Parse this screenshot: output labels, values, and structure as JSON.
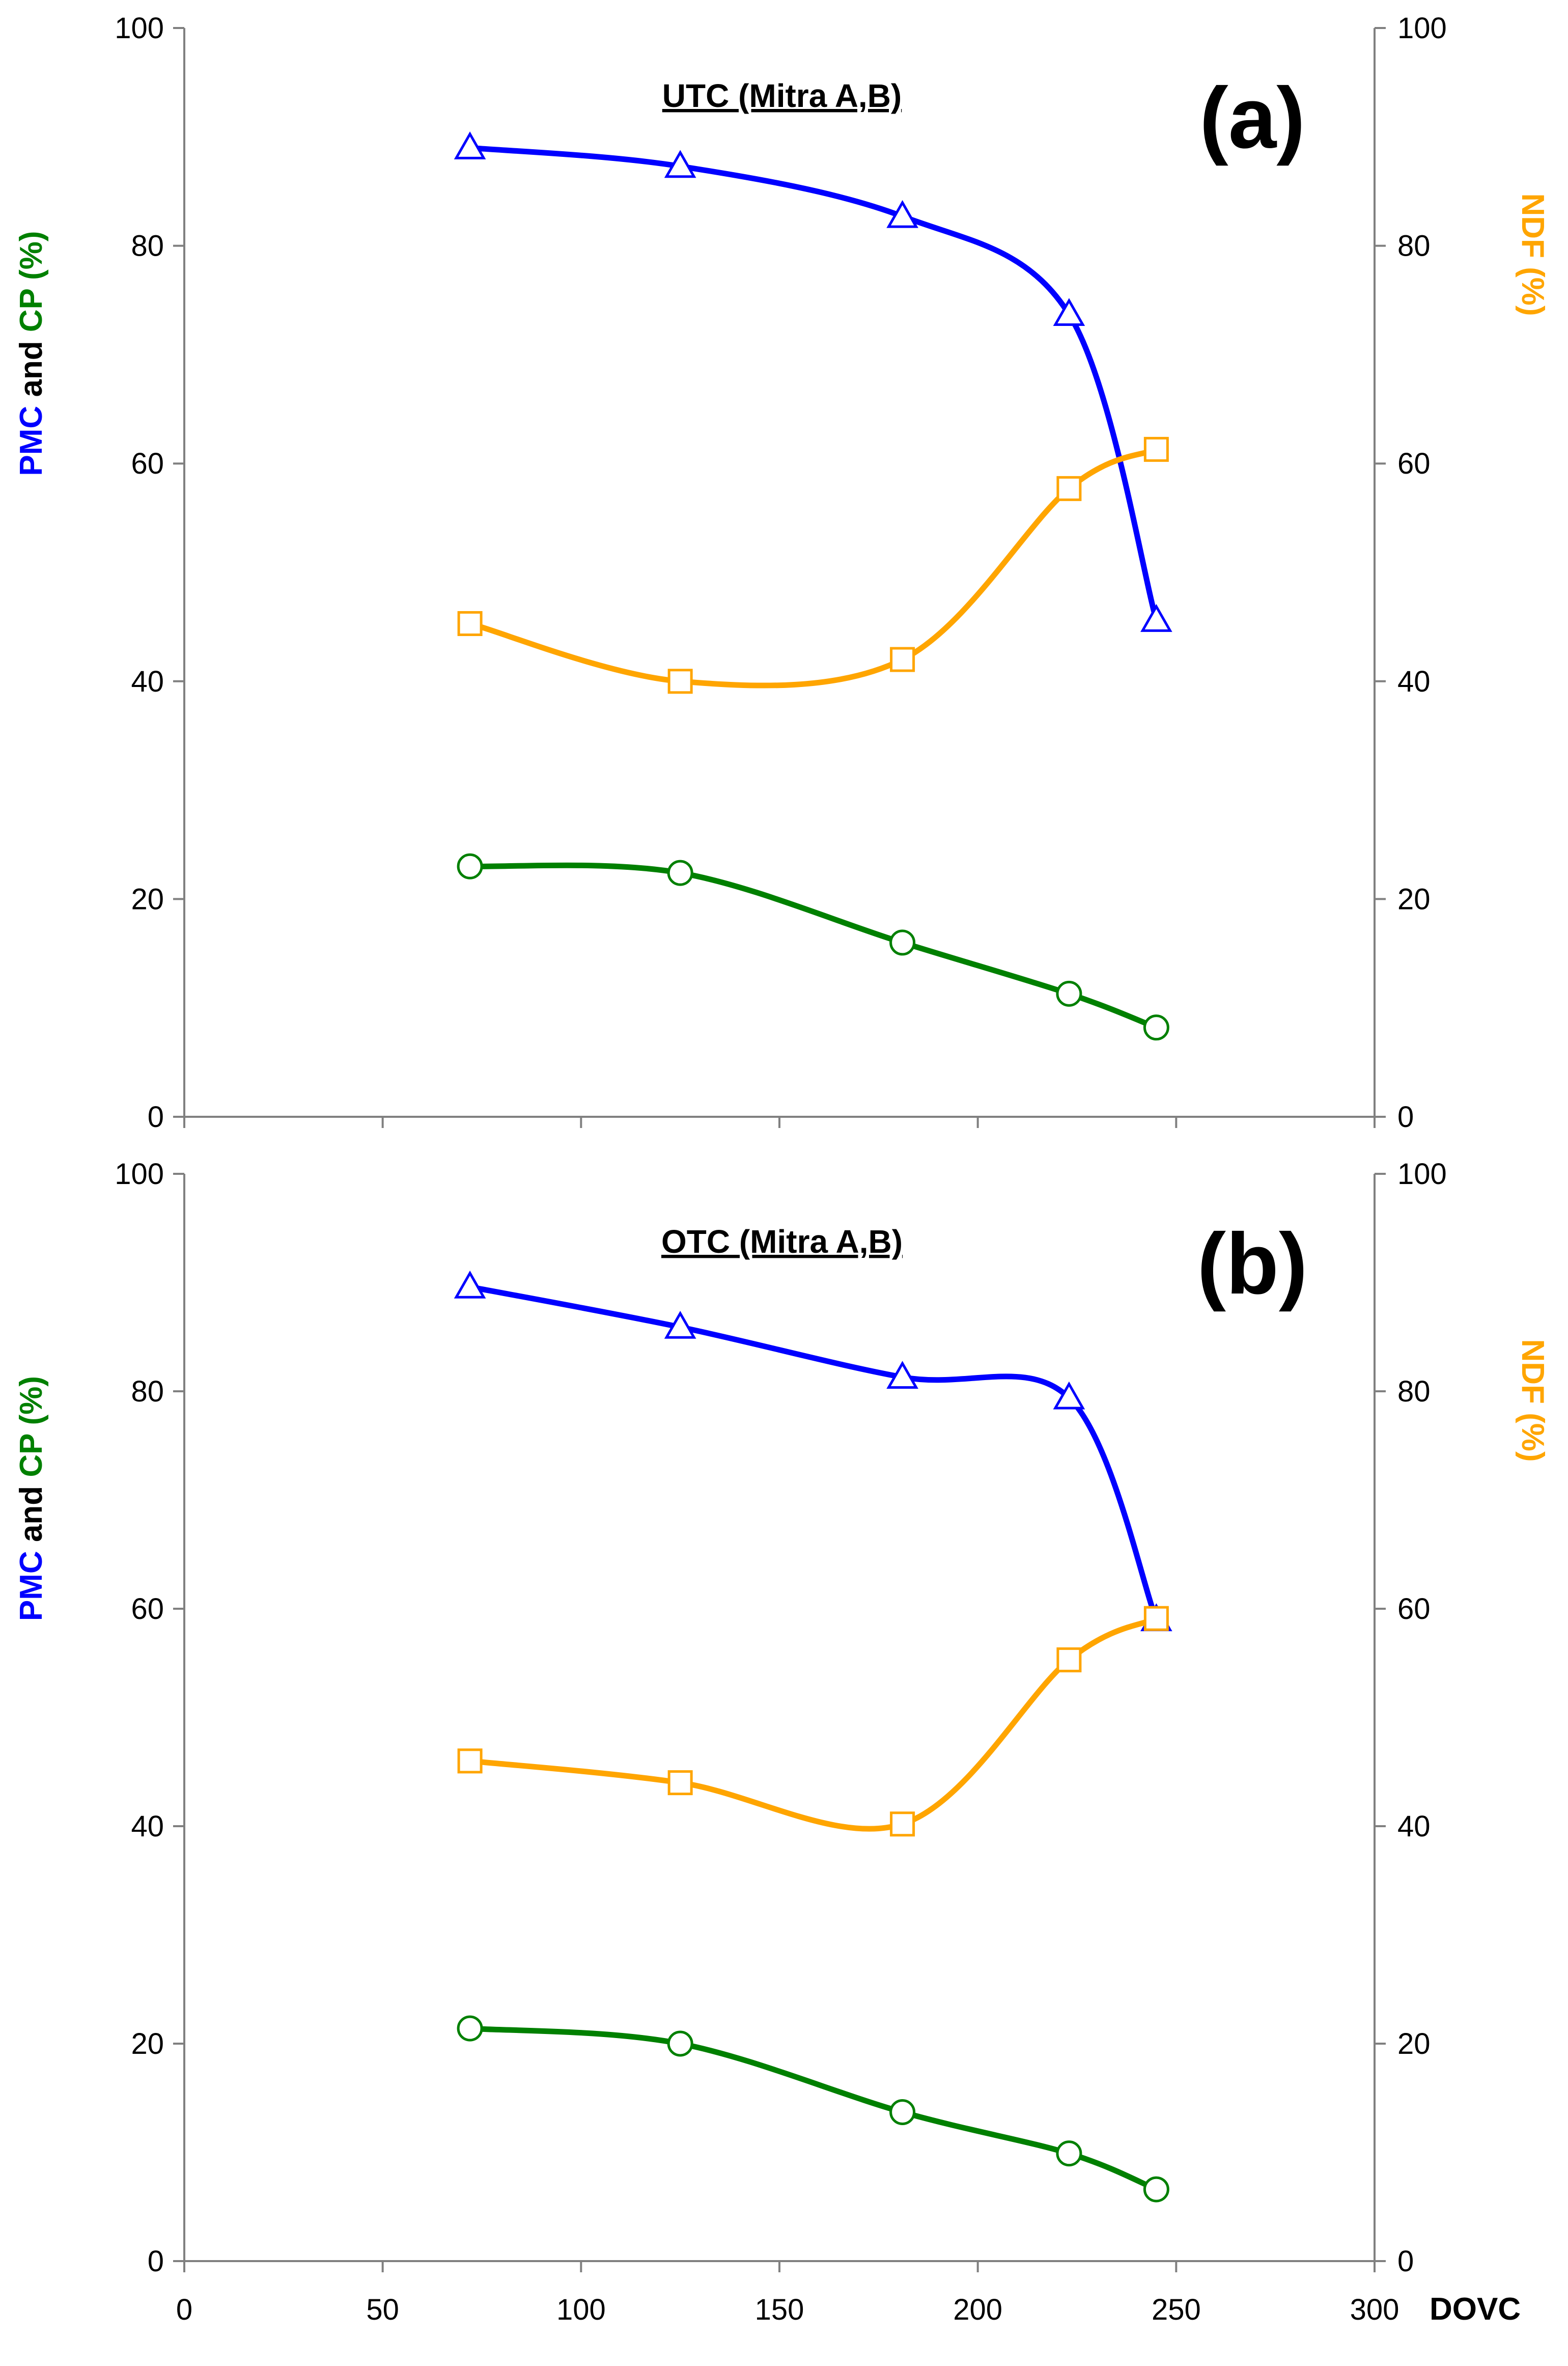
{
  "colors": {
    "pmc": "#0000ff",
    "cp": "#008000",
    "ndf": "#ffa500",
    "axis": "#808080",
    "text": "#000000"
  },
  "chart_data": {
    "type": "line",
    "x_axis": {
      "label": "DOVC",
      "ticks": [
        "0",
        "50",
        "100",
        "150",
        "200",
        "250",
        "300"
      ],
      "range": [
        0,
        300
      ]
    },
    "y_left": {
      "parts": [
        {
          "text": "PMC",
          "color": "#0000ff"
        },
        {
          "text": " and ",
          "color": "#000000"
        },
        {
          "text": "CP",
          "color": "#008000"
        },
        {
          "text": " (%)",
          "color": "#008000"
        }
      ],
      "ticks": [
        "0",
        "20",
        "40",
        "60",
        "80",
        "100"
      ],
      "range": [
        0,
        100
      ]
    },
    "y_right": {
      "label": "NDF (%)",
      "color": "#ffa500",
      "ticks": [
        "0",
        "20",
        "40",
        "60",
        "80",
        "100"
      ],
      "range": [
        0,
        100
      ]
    },
    "panels": [
      {
        "tag": "(a)",
        "title": "UTC (Mitra A,B)",
        "series": [
          {
            "name": "PMC",
            "axis": "left",
            "marker": "triangle",
            "color": "#0000ff",
            "x": [
              72,
              125,
              181,
              223,
              245
            ],
            "y": [
              89.0,
              87.3,
              82.7,
              73.7,
              45.6
            ]
          },
          {
            "name": "NDF",
            "axis": "right",
            "marker": "square",
            "color": "#ffa500",
            "x": [
              72,
              125,
              181,
              223,
              245
            ],
            "y": [
              45.3,
              40.0,
              42.0,
              57.7,
              61.3
            ]
          },
          {
            "name": "CP",
            "axis": "left",
            "marker": "circle",
            "color": "#008000",
            "x": [
              72,
              125,
              181,
              223,
              245
            ],
            "y": [
              23.0,
              22.4,
              16.0,
              11.3,
              8.2
            ]
          }
        ]
      },
      {
        "tag": "(b)",
        "title": "OTC (Mitra A,B)",
        "series": [
          {
            "name": "PMC",
            "axis": "left",
            "marker": "triangle",
            "color": "#0000ff",
            "x": [
              72,
              125,
              181,
              223,
              245
            ],
            "y": [
              89.6,
              85.9,
              81.3,
              79.4,
              59.0
            ]
          },
          {
            "name": "NDF",
            "axis": "right",
            "marker": "square",
            "color": "#ffa500",
            "x": [
              72,
              125,
              181,
              223,
              245
            ],
            "y": [
              46.0,
              44.0,
              40.2,
              55.3,
              59.1
            ]
          },
          {
            "name": "CP",
            "axis": "left",
            "marker": "circle",
            "color": "#008000",
            "x": [
              72,
              125,
              181,
              223,
              245
            ],
            "y": [
              21.4,
              20.0,
              13.7,
              9.9,
              6.6
            ]
          }
        ]
      }
    ]
  }
}
